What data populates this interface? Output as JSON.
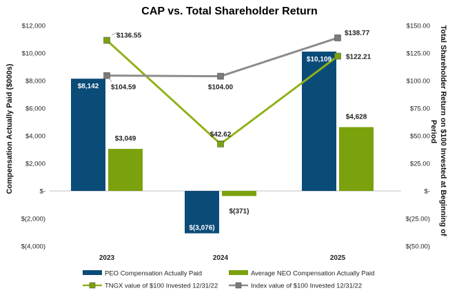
{
  "chart_data": {
    "type": "bar",
    "title": "CAP vs. Total Shareholder Return",
    "categories": [
      "2023",
      "2024",
      "2025"
    ],
    "ylabel": "Compensation Actually Paid ($000s)",
    "y2label": "Total Shareholder Return on $100 Invested at Beginning of Period",
    "ylim": [
      -4000,
      12000
    ],
    "y2lim": [
      -50,
      150
    ],
    "y_ticks": [
      {
        "value": 12000,
        "label": "$12,000"
      },
      {
        "value": 10000,
        "label": "$10,000"
      },
      {
        "value": 8000,
        "label": "$8,000"
      },
      {
        "value": 6000,
        "label": "$6,000"
      },
      {
        "value": 4000,
        "label": "$4,000"
      },
      {
        "value": 2000,
        "label": "$2,000"
      },
      {
        "value": 0,
        "label": "$-"
      },
      {
        "value": -2000,
        "label": "$(2,000)"
      },
      {
        "value": -4000,
        "label": "$(4,000)"
      }
    ],
    "y2_ticks": [
      {
        "value": 150,
        "label": "$150.00"
      },
      {
        "value": 125,
        "label": "$125.00"
      },
      {
        "value": 100,
        "label": "$100.00"
      },
      {
        "value": 75,
        "label": "$75.00"
      },
      {
        "value": 50,
        "label": "$50.00"
      },
      {
        "value": 25,
        "label": "$25.00"
      },
      {
        "value": 0,
        "label": "$-"
      },
      {
        "value": -25,
        "label": "$(25.00)"
      },
      {
        "value": -50,
        "label": "$(50.00)"
      }
    ],
    "grid": false,
    "legend_position": "bottom",
    "bar_series": [
      {
        "name": "PEO Compensation Actually Paid",
        "color": "#0b4b78",
        "values": [
          8142,
          -3076,
          10109
        ],
        "labels": [
          "$8,142",
          "$(3,076)",
          "$10,109"
        ]
      },
      {
        "name": "Average NEO Compensation Actually Paid",
        "color": "#7ba10c",
        "values": [
          3049,
          -371,
          4628
        ],
        "labels": [
          "$3,049",
          "$(371)",
          "$4,628"
        ]
      }
    ],
    "line_series": [
      {
        "name": "TNGX value of $100 Invested 12/31/22",
        "color": "#8fb21a",
        "marker": "#7ba10c",
        "values": [
          136.55,
          42.62,
          122.21
        ],
        "labels": [
          "$136.55",
          "$42.62",
          "$122.21"
        ]
      },
      {
        "name": "Index value of $100 Invested 12/31/22",
        "color": "#8c8c8c",
        "marker": "#7a7a7a",
        "values": [
          104.59,
          104.0,
          138.77
        ],
        "labels": [
          "$104.59",
          "$104.00",
          "$138.77"
        ]
      }
    ]
  }
}
